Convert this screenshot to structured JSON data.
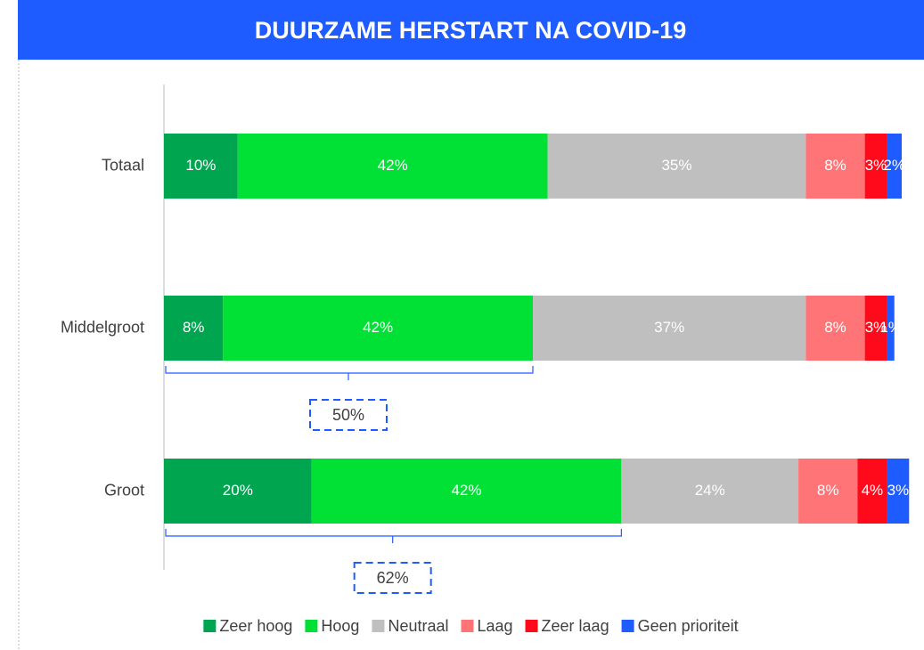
{
  "chart_data": {
    "type": "stacked_bar_horizontal",
    "title": "DUURZAME HERSTART NA COVID-19",
    "categories": [
      "Totaal",
      "Middelgroot",
      "Groot"
    ],
    "series": [
      {
        "name": "Zeer hoog",
        "color": "#00a550",
        "values": [
          10,
          8,
          20
        ],
        "value_labels": [
          "10%",
          "8%",
          "20%"
        ]
      },
      {
        "name": "Hoog",
        "color": "#00e035",
        "values": [
          42,
          42,
          42
        ],
        "value_labels": [
          "42%",
          "42%",
          "42%"
        ]
      },
      {
        "name": "Neutraal",
        "color": "#bfbfbf",
        "values": [
          35,
          37,
          24
        ],
        "value_labels": [
          "35%",
          "37%",
          "24%"
        ]
      },
      {
        "name": "Laag",
        "color": "#ff7477",
        "values": [
          8,
          8,
          8
        ],
        "value_labels": [
          "8%",
          "8%",
          "8%"
        ]
      },
      {
        "name": "Zeer laag",
        "color": "#ff0a1a",
        "values": [
          3,
          3,
          4
        ],
        "value_labels": [
          "3%",
          "3%",
          "4%"
        ]
      },
      {
        "name": "Geen prioriteit",
        "color": "#1f5cff",
        "values": [
          2,
          1,
          3
        ],
        "value_labels": [
          "2%",
          "1%",
          "3%"
        ]
      }
    ],
    "xlim": [
      0,
      100
    ],
    "annotations": [
      {
        "text": "50%"
      },
      {
        "text": "62%"
      }
    ],
    "legend": "bottom"
  }
}
